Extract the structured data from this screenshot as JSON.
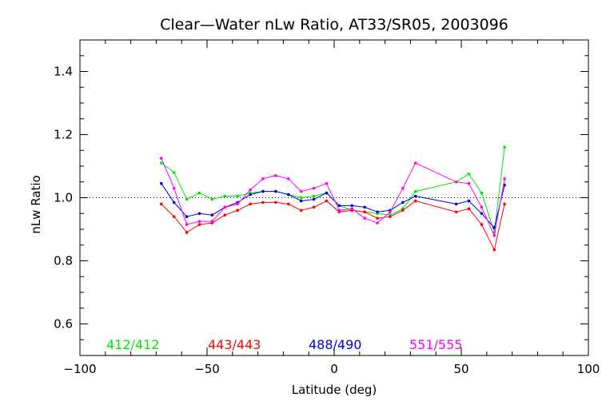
{
  "chart_data": {
    "type": "line",
    "title": "Clear—Water nLw Ratio, AT33/SR05, 2003096",
    "xlabel": "Latitude (deg)",
    "ylabel": "nLw Ratio",
    "xlim": [
      -100,
      100
    ],
    "ylim": [
      0.5,
      1.5
    ],
    "x_ticks": [
      -100,
      -50,
      0,
      50,
      100
    ],
    "x_tick_labels": [
      "−100",
      "−50",
      "0",
      "50",
      "100"
    ],
    "y_ticks": [
      0.6,
      0.8,
      1.0,
      1.2,
      1.4
    ],
    "y_tick_labels": [
      "0.6",
      "0.8",
      "1.0",
      "1.2",
      "1.4"
    ],
    "reference_line": {
      "y": 1.0,
      "style": "dotted"
    },
    "legend_placement": "bottom-inside",
    "series": [
      {
        "name": "412/412",
        "color": "#00e600",
        "x": [
          -68,
          -63,
          -58,
          -53,
          -48,
          -43,
          -38,
          -33,
          -28,
          -23,
          -18,
          -13,
          -8,
          -3,
          2,
          7,
          12,
          17,
          22,
          27,
          32,
          48,
          53,
          58,
          63,
          67
        ],
        "y": [
          1.11,
          1.08,
          0.995,
          1.015,
          0.995,
          1.005,
          1.005,
          1.015,
          1.02,
          1.02,
          1.01,
          1.0,
          1.005,
          1.015,
          0.975,
          0.96,
          0.955,
          0.95,
          0.945,
          0.965,
          1.02,
          1.05,
          1.075,
          1.015,
          0.89,
          1.16
        ]
      },
      {
        "name": "443/443",
        "color": "#ff0000",
        "x": [
          -68,
          -63,
          -58,
          -53,
          -48,
          -43,
          -38,
          -33,
          -28,
          -23,
          -18,
          -13,
          -8,
          -3,
          2,
          7,
          12,
          17,
          22,
          27,
          32,
          48,
          53,
          58,
          63,
          67
        ],
        "y": [
          0.98,
          0.94,
          0.89,
          0.915,
          0.92,
          0.945,
          0.96,
          0.98,
          0.985,
          0.985,
          0.98,
          0.96,
          0.97,
          0.99,
          0.955,
          0.96,
          0.955,
          0.935,
          0.94,
          0.96,
          0.99,
          0.955,
          0.965,
          0.915,
          0.835,
          0.98
        ]
      },
      {
        "name": "488/490",
        "color": "#0000e0",
        "x": [
          -68,
          -63,
          -58,
          -53,
          -48,
          -43,
          -38,
          -33,
          -28,
          -23,
          -18,
          -13,
          -8,
          -3,
          2,
          7,
          12,
          17,
          22,
          27,
          32,
          48,
          53,
          58,
          63,
          67
        ],
        "y": [
          1.045,
          0.985,
          0.94,
          0.95,
          0.945,
          0.97,
          0.985,
          1.01,
          1.02,
          1.02,
          1.01,
          0.99,
          0.995,
          1.015,
          0.975,
          0.975,
          0.97,
          0.955,
          0.96,
          0.985,
          1.005,
          0.98,
          0.99,
          0.95,
          0.905,
          1.04
        ]
      },
      {
        "name": "551/555",
        "color": "#ff00ff",
        "x": [
          -68,
          -63,
          -58,
          -53,
          -48,
          -43,
          -38,
          -33,
          -28,
          -23,
          -18,
          -13,
          -8,
          -3,
          2,
          7,
          12,
          17,
          22,
          27,
          32,
          48,
          53,
          58,
          63,
          67
        ],
        "y": [
          1.125,
          1.03,
          0.915,
          0.925,
          0.925,
          0.97,
          0.98,
          1.025,
          1.06,
          1.07,
          1.06,
          1.02,
          1.03,
          1.045,
          0.96,
          0.965,
          0.935,
          0.92,
          0.955,
          1.03,
          1.11,
          1.05,
          1.045,
          0.97,
          0.88,
          1.06
        ]
      }
    ]
  }
}
